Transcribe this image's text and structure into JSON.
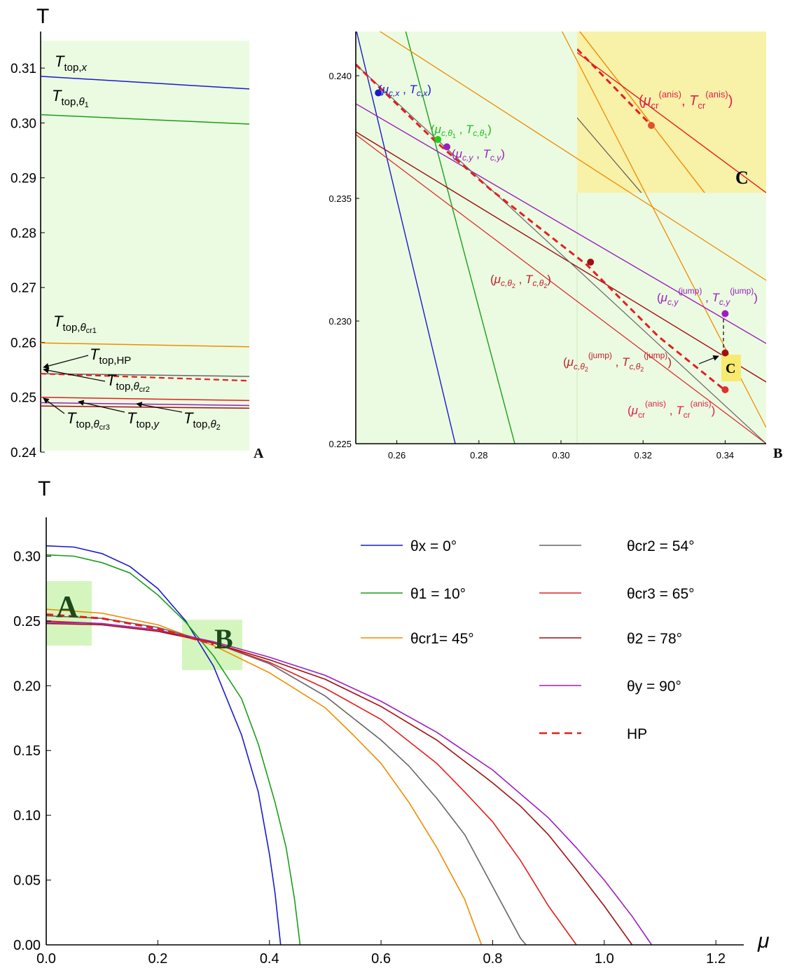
{
  "chart_data": [
    {
      "id": "A",
      "type": "line",
      "panel_label": "A",
      "ylabel": "T",
      "ylim": [
        0.24,
        0.315
      ],
      "yticks": [
        "0.24",
        "0.25",
        "0.26",
        "0.27",
        "0.28",
        "0.29",
        "0.30",
        "0.31"
      ],
      "lines": [
        {
          "label": "T_top,x",
          "color": "#1a1acc",
          "y": [
            0.3085,
            0.3062
          ]
        },
        {
          "label": "T_top,θ1",
          "color": "#1a9e1a",
          "y": [
            0.3015,
            0.2998
          ]
        },
        {
          "label": "T_top,θcr1",
          "color": "#f08c00",
          "y": [
            0.2599,
            0.2592
          ]
        },
        {
          "label": "T_top,HP",
          "color": "#666666",
          "y": [
            0.2543,
            0.2538
          ]
        },
        {
          "label": "T_top,θcr2",
          "color": "#e02020",
          "dashed": true,
          "y": [
            0.2543,
            0.253
          ]
        },
        {
          "label": "T_top,θcr3",
          "color": "#e02020",
          "y": [
            0.25,
            0.2494
          ]
        },
        {
          "label": "T_top,y",
          "color": "#9b1fbf",
          "y": [
            0.249,
            0.2485
          ]
        },
        {
          "label": "T_top,θ2",
          "color": "#a01010",
          "y": [
            0.2484,
            0.248
          ]
        }
      ],
      "annotations": [
        "T_top,x",
        "T_top,θ1",
        "T_top,θcr1",
        "T_top,HP",
        "T_top,θcr2",
        "T_top,θcr3",
        "T_top,y",
        "T_top,θ2"
      ]
    },
    {
      "id": "B",
      "type": "line",
      "panel_label": "B",
      "xlim": [
        0.25,
        0.35
      ],
      "ylim": [
        0.225,
        0.2418
      ],
      "xticks": [
        "0.26",
        "0.28",
        "0.30",
        "0.32",
        "0.34"
      ],
      "yticks": [
        "0.225",
        "0.230",
        "0.235",
        "0.240"
      ],
      "points": [
        {
          "label": "(μc,x , Tc,x)",
          "color": "#1a1acc",
          "x": 0.2555,
          "y": 0.2393
        },
        {
          "label": "(μc,θ1 , Tc,θ1)",
          "color": "#22cc22",
          "x": 0.27,
          "y": 0.2374
        },
        {
          "label": "(μc,y , Tc,y)",
          "color": "#9b1fbf",
          "x": 0.2722,
          "y": 0.2371
        },
        {
          "label": "(μc,θ2 , Tc,θ2)",
          "color": "#a01010",
          "x": 0.3072,
          "y": 0.2324
        },
        {
          "label": "(μc,y(jump) , Tc,y(jump))",
          "color": "#9b1fbf",
          "x": 0.34,
          "y": 0.2303
        },
        {
          "label": "(μc,θ2(jump) , Tc,θ2(jump))",
          "color": "#a01010",
          "x": 0.34,
          "y": 0.2287
        },
        {
          "label": "(μcr(anis) , Tcr(anis))",
          "color": "#e03030",
          "x": 0.34,
          "y": 0.2272
        }
      ],
      "inset_label": "C",
      "inset_point_label": "(μcr(anis) , Tcr(anis))"
    },
    {
      "id": "main",
      "type": "line",
      "xlabel": "μ",
      "ylabel": "T",
      "xlim": [
        0,
        1.25
      ],
      "ylim": [
        0,
        0.33
      ],
      "xticks": [
        "0.0",
        "0.2",
        "0.4",
        "0.6",
        "0.8",
        "1.0",
        "1.2"
      ],
      "yticks": [
        "0.00",
        "0.05",
        "0.10",
        "0.15",
        "0.20",
        "0.25",
        "0.30"
      ],
      "region_labels": [
        "A",
        "B"
      ],
      "series": [
        {
          "name": "θx = 0°",
          "color": "#1a1acc",
          "x": [
            0,
            0.05,
            0.1,
            0.15,
            0.2,
            0.25,
            0.3,
            0.35,
            0.38,
            0.4,
            0.41,
            0.42
          ],
          "y": [
            0.308,
            0.307,
            0.302,
            0.292,
            0.275,
            0.25,
            0.215,
            0.162,
            0.118,
            0.07,
            0.04,
            0
          ]
        },
        {
          "name": "θ1 = 10°",
          "color": "#1a9e1a",
          "x": [
            0,
            0.05,
            0.1,
            0.15,
            0.2,
            0.25,
            0.3,
            0.35,
            0.38,
            0.41,
            0.43,
            0.445,
            0.455
          ],
          "y": [
            0.301,
            0.3,
            0.295,
            0.287,
            0.27,
            0.249,
            0.223,
            0.19,
            0.155,
            0.11,
            0.075,
            0.035,
            0
          ]
        },
        {
          "name": "θcr1= 45°",
          "color": "#f08c00",
          "x": [
            0,
            0.1,
            0.2,
            0.3,
            0.4,
            0.5,
            0.55,
            0.6,
            0.65,
            0.7,
            0.75,
            0.78
          ],
          "y": [
            0.259,
            0.256,
            0.247,
            0.231,
            0.21,
            0.183,
            0.162,
            0.14,
            0.11,
            0.075,
            0.035,
            0
          ]
        },
        {
          "name": "θcr2 = 54°",
          "color": "#666666",
          "x": [
            0,
            0.1,
            0.2,
            0.3,
            0.4,
            0.5,
            0.6,
            0.65,
            0.7,
            0.75,
            0.8,
            0.85,
            0.86
          ],
          "y": [
            0.254,
            0.252,
            0.245,
            0.233,
            0.217,
            0.192,
            0.158,
            0.138,
            0.113,
            0.085,
            0.045,
            0.005,
            0
          ]
        },
        {
          "name": "θcr3 = 65°",
          "color": "#e02020",
          "x": [
            0,
            0.1,
            0.2,
            0.3,
            0.4,
            0.5,
            0.6,
            0.7,
            0.75,
            0.8,
            0.85,
            0.9,
            0.95
          ],
          "y": [
            0.25,
            0.248,
            0.243,
            0.233,
            0.218,
            0.198,
            0.174,
            0.14,
            0.118,
            0.095,
            0.065,
            0.03,
            0
          ]
        },
        {
          "name": "θ2 = 78°",
          "color": "#a01010",
          "x": [
            0,
            0.1,
            0.2,
            0.3,
            0.4,
            0.5,
            0.6,
            0.7,
            0.8,
            0.85,
            0.9,
            0.95,
            1.0,
            1.05
          ],
          "y": [
            0.248,
            0.247,
            0.242,
            0.233,
            0.22,
            0.205,
            0.184,
            0.158,
            0.125,
            0.107,
            0.085,
            0.058,
            0.03,
            0
          ]
        },
        {
          "name": "θy = 90°",
          "color": "#9b1fbf",
          "x": [
            0,
            0.1,
            0.2,
            0.3,
            0.4,
            0.5,
            0.6,
            0.7,
            0.8,
            0.9,
            0.95,
            1.0,
            1.05,
            1.085
          ],
          "y": [
            0.249,
            0.248,
            0.243,
            0.234,
            0.222,
            0.208,
            0.188,
            0.164,
            0.135,
            0.098,
            0.075,
            0.05,
            0.022,
            0
          ]
        },
        {
          "name": "HP",
          "color": "#e02020",
          "dashed": true,
          "x": [
            0,
            0.1,
            0.2,
            0.3
          ],
          "y": [
            0.255,
            0.252,
            0.244,
            0.232
          ]
        }
      ],
      "legend": [
        {
          "label": "θx = 0°",
          "color": "#1a1acc"
        },
        {
          "label": "θ1 = 10°",
          "color": "#1a9e1a"
        },
        {
          "label": "θcr1= 45°",
          "color": "#f08c00"
        },
        {
          "label": "θcr2 = 54°",
          "color": "#666666"
        },
        {
          "label": "θcr3 = 65°",
          "color": "#e02020"
        },
        {
          "label": "θ2 = 78°",
          "color": "#a01010"
        },
        {
          "label": "θy = 90°",
          "color": "#9b1fbf"
        },
        {
          "label": "HP",
          "color": "#e02020",
          "dashed": true
        }
      ]
    }
  ]
}
